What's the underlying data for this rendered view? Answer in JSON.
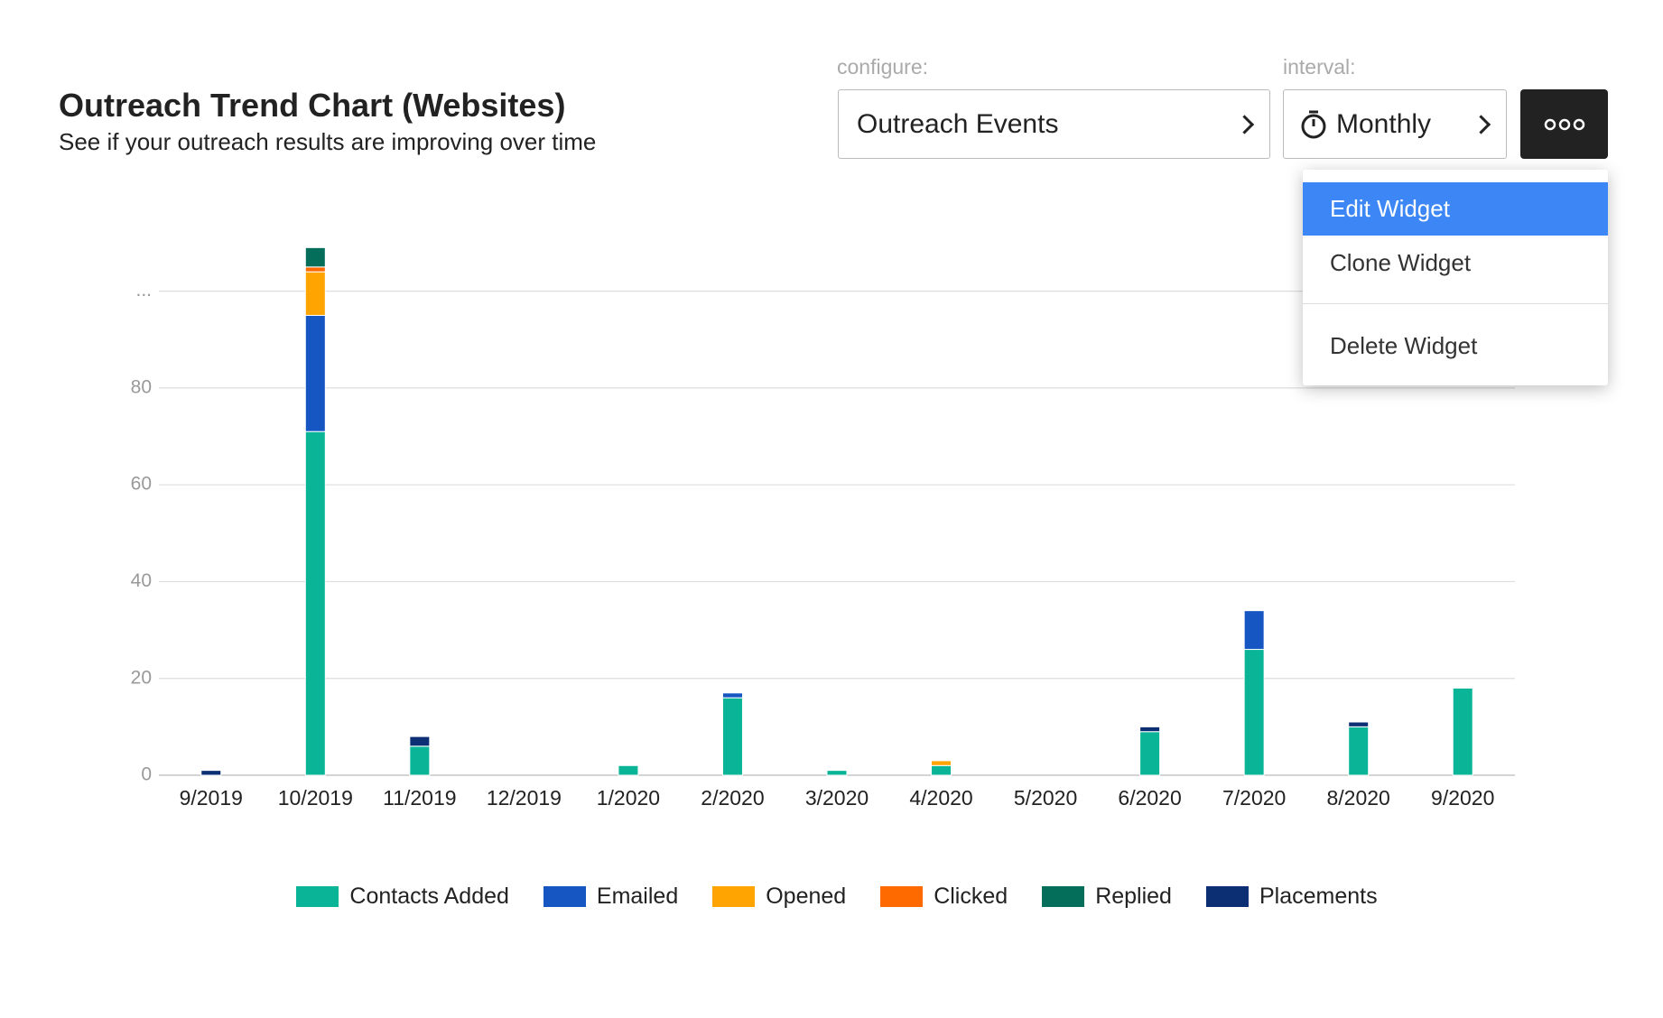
{
  "header": {
    "title": "Outreach Trend Chart (Websites)",
    "subtitle": "See if your outreach results are improving over time"
  },
  "controls": {
    "configure_label": "configure:",
    "configure_value": "Outreach Events",
    "interval_label": "interval:",
    "interval_value": "Monthly"
  },
  "menu": {
    "items": [
      "Edit Widget",
      "Clone Widget",
      "Delete Widget"
    ]
  },
  "chart_data": {
    "type": "stacked_bar",
    "categories": [
      "9/2019",
      "10/2019",
      "11/2019",
      "12/2019",
      "1/2020",
      "2/2020",
      "3/2020",
      "4/2020",
      "5/2020",
      "6/2020",
      "7/2020",
      "8/2020",
      "9/2020"
    ],
    "series": [
      {
        "name": "Contacts Added",
        "color": "#0ab597",
        "values": [
          0,
          71,
          6,
          0,
          2,
          16,
          1,
          2,
          0,
          9,
          26,
          10,
          18
        ]
      },
      {
        "name": "Emailed",
        "color": "#1556c2",
        "values": [
          0,
          24,
          0,
          0,
          0,
          1,
          0,
          0,
          0,
          0,
          8,
          0,
          0
        ]
      },
      {
        "name": "Opened",
        "color": "#ffa400",
        "values": [
          0,
          9,
          0,
          0,
          0,
          0,
          0,
          1,
          0,
          0,
          0,
          0,
          0
        ]
      },
      {
        "name": "Clicked",
        "color": "#ff6a00",
        "values": [
          0,
          1,
          0,
          0,
          0,
          0,
          0,
          0,
          0,
          0,
          0,
          0,
          0
        ]
      },
      {
        "name": "Replied",
        "color": "#056e5b",
        "values": [
          0,
          4,
          0,
          0,
          0,
          0,
          0,
          0,
          0,
          0,
          0,
          0,
          0
        ]
      },
      {
        "name": "Placements",
        "color": "#0c2e73",
        "values": [
          1,
          0,
          2,
          0,
          0,
          0,
          0,
          0,
          0,
          1,
          0,
          1,
          0
        ]
      }
    ],
    "ylim": [
      0,
      110
    ],
    "yticks": [
      0,
      20,
      40,
      60,
      80,
      {
        "value": 100,
        "label": "..."
      }
    ],
    "grid": true,
    "legend": "bottom"
  }
}
